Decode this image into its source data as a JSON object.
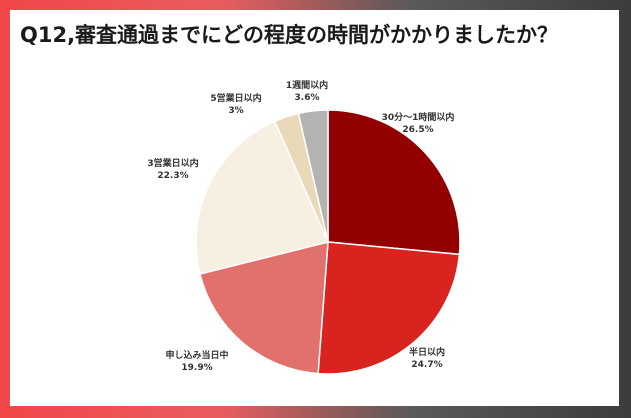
{
  "title": "Q12,審査通過までにどの程度の時間がかかりましたか？",
  "chart_data": {
    "type": "pie",
    "title": "Q12,審査通過までにどの程度の時間がかかりましたか？",
    "start_angle_deg": 0,
    "direction": "clockwise",
    "slices": [
      {
        "label": "30分〜1時間以内",
        "value": 26.5,
        "value_label": "26.5%",
        "color": "#920000"
      },
      {
        "label": "半日以内",
        "value": 24.7,
        "value_label": "24.7%",
        "color": "#d8231f"
      },
      {
        "label": "申し込み当日中",
        "value": 19.9,
        "value_label": "19.9%",
        "color": "#e2706c"
      },
      {
        "label": "3営業日以内",
        "value": 22.3,
        "value_label": "22.3%",
        "color": "#f7f0e2"
      },
      {
        "label": "5営業日以内",
        "value": 3.0,
        "value_label": "3%",
        "color": "#ead9b9"
      },
      {
        "label": "1週間以内",
        "value": 3.6,
        "value_label": "3.6%",
        "color": "#b3b3b3"
      }
    ]
  }
}
